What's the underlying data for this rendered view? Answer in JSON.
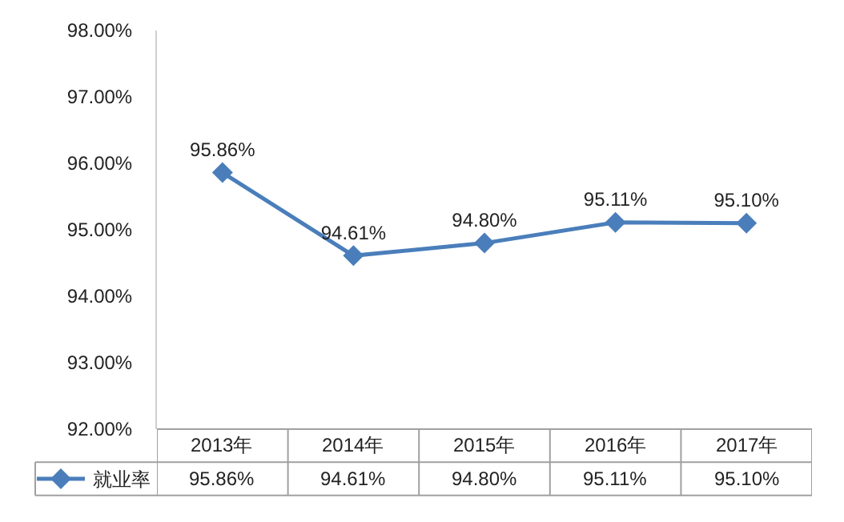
{
  "chart_data": {
    "type": "line",
    "categories": [
      "2013年",
      "2014年",
      "2015年",
      "2016年",
      "2017年"
    ],
    "series": [
      {
        "name": "就业率",
        "color": "#4a7ebb",
        "values": [
          95.86,
          94.61,
          94.8,
          95.11,
          95.1
        ],
        "value_labels": [
          "95.86%",
          "94.61%",
          "94.80%",
          "95.11%",
          "95.10%"
        ]
      }
    ],
    "ylim": [
      92,
      98
    ],
    "yticks": [
      {
        "value": 92,
        "label": "92.00%"
      },
      {
        "value": 93,
        "label": "93.00%"
      },
      {
        "value": 94,
        "label": "94.00%"
      },
      {
        "value": 95,
        "label": "95.00%"
      },
      {
        "value": 96,
        "label": "96.00%"
      },
      {
        "value": 97,
        "label": "97.00%"
      },
      {
        "value": 98,
        "label": "98.00%"
      }
    ],
    "marker": "diamond",
    "line_style": "solid",
    "legend": "bottom left"
  }
}
